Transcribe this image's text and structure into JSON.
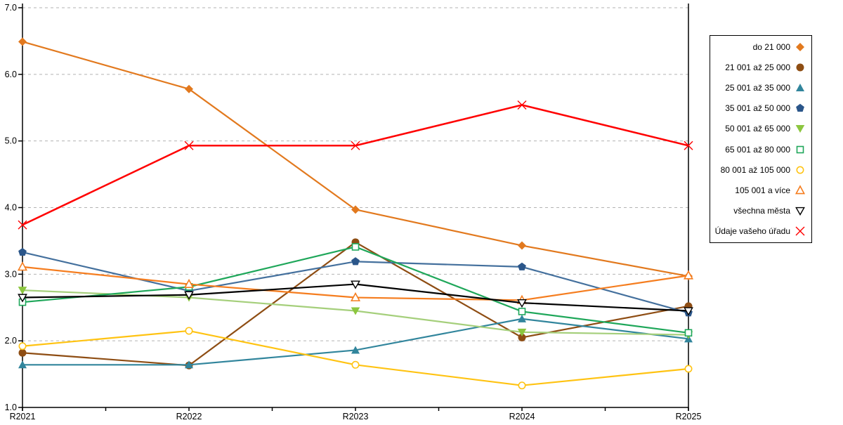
{
  "chart_data": {
    "type": "line",
    "title": "",
    "xlabel": "",
    "ylabel": "",
    "x_categories": [
      "R2021",
      "R2022",
      "R2023",
      "R2024",
      "R2025"
    ],
    "y_tick_labels": [
      "7.0",
      "6.0",
      "5.0",
      "4.0",
      "3.0",
      "2.0",
      "1.0"
    ],
    "ylim": [
      1.0,
      7.0
    ],
    "grid": "horizontal-dashed",
    "gridline_color": "#b3b3b3",
    "axis_color": "#000000",
    "legend_position": "right",
    "series": [
      {
        "name": "do 21 000",
        "marker": "diamond-filled",
        "color": "#e2791e",
        "values": [
          6.49,
          5.78,
          3.97,
          3.43,
          2.97
        ]
      },
      {
        "name": "21 001 až 25 000",
        "marker": "circle-filled",
        "color": "#8e4d13",
        "values": [
          1.82,
          1.63,
          3.48,
          2.05,
          2.52
        ]
      },
      {
        "name": "25 001 až 35 000",
        "marker": "triangle-up-filled",
        "color": "#31859c",
        "values": [
          1.64,
          1.64,
          1.86,
          2.33,
          2.03
        ]
      },
      {
        "name": "35 001 až 50 000",
        "marker": "pentagon-filled",
        "color": "#44709d",
        "marker_color": "#2b568a",
        "values": [
          3.33,
          2.75,
          3.19,
          3.11,
          2.42
        ]
      },
      {
        "name": "50 001 až 65 000",
        "marker": "triangle-down-filled",
        "color": "#a5cf7b",
        "marker_color": "#8cc63f",
        "values": [
          2.76,
          2.65,
          2.45,
          2.13,
          2.09
        ]
      },
      {
        "name": "65 001 až 80 000",
        "marker": "square-hollow",
        "color": "#1fa75a",
        "values": [
          2.58,
          2.81,
          3.41,
          2.44,
          2.12
        ]
      },
      {
        "name": "80 001 až 105 000",
        "marker": "circle-hollow",
        "color": "#ffc312",
        "values": [
          1.92,
          2.15,
          1.64,
          1.33,
          1.58
        ]
      },
      {
        "name": "105 001 a více",
        "marker": "triangle-up-hollow",
        "color": "#f57d1f",
        "values": [
          3.11,
          2.85,
          2.65,
          2.61,
          2.98
        ]
      },
      {
        "name": "všechna města",
        "marker": "triangle-down-hollow",
        "color": "#000000",
        "values": [
          2.65,
          2.69,
          2.85,
          2.57,
          2.45
        ]
      },
      {
        "name": "Údaje vašeho úřadu",
        "marker": "x",
        "color": "#ff0000",
        "values": [
          3.74,
          4.93,
          4.93,
          5.54,
          4.93
        ]
      }
    ]
  }
}
